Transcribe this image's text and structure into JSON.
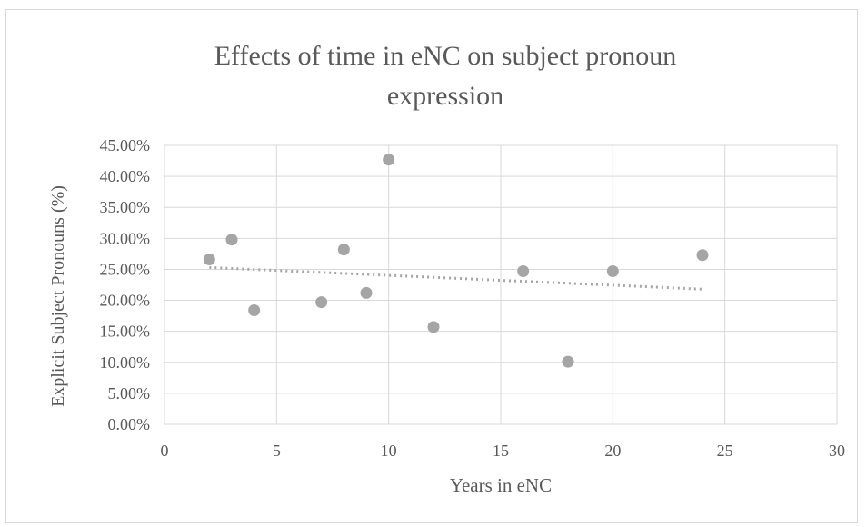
{
  "chart_data": {
    "type": "scatter",
    "title": "Effects of time in eNC on subject  pronoun\nexpression",
    "xlabel": "Years  in eNC",
    "ylabel": "Explicit Subject  Pronouns (%)",
    "xlim": [
      0,
      30
    ],
    "ylim": [
      0,
      0.45
    ],
    "xticks": [
      "0",
      "5",
      "10",
      "15",
      "20",
      "25",
      "30"
    ],
    "yticks": [
      "0.00%",
      "5.00%",
      "10.00%",
      "15.00%",
      "20.00%",
      "25.00%",
      "30.00%",
      "35.00%",
      "40.00%",
      "45.00%"
    ],
    "grid": true,
    "points": [
      {
        "x": 2,
        "y": 0.266
      },
      {
        "x": 3,
        "y": 0.298
      },
      {
        "x": 4,
        "y": 0.184
      },
      {
        "x": 7,
        "y": 0.197
      },
      {
        "x": 8,
        "y": 0.282
      },
      {
        "x": 9,
        "y": 0.212
      },
      {
        "x": 10,
        "y": 0.427
      },
      {
        "x": 12,
        "y": 0.157
      },
      {
        "x": 16,
        "y": 0.247
      },
      {
        "x": 18,
        "y": 0.101
      },
      {
        "x": 20,
        "y": 0.247
      },
      {
        "x": 24,
        "y": 0.273
      }
    ],
    "trendline": {
      "type": "linear",
      "style": "dotted",
      "x": [
        2,
        24
      ],
      "y": [
        0.253,
        0.218
      ]
    },
    "colors": {
      "points": "#a5a5a5",
      "trendline": "#a5a5a5",
      "grid": "#d9d9d9",
      "text": "#595959"
    }
  }
}
